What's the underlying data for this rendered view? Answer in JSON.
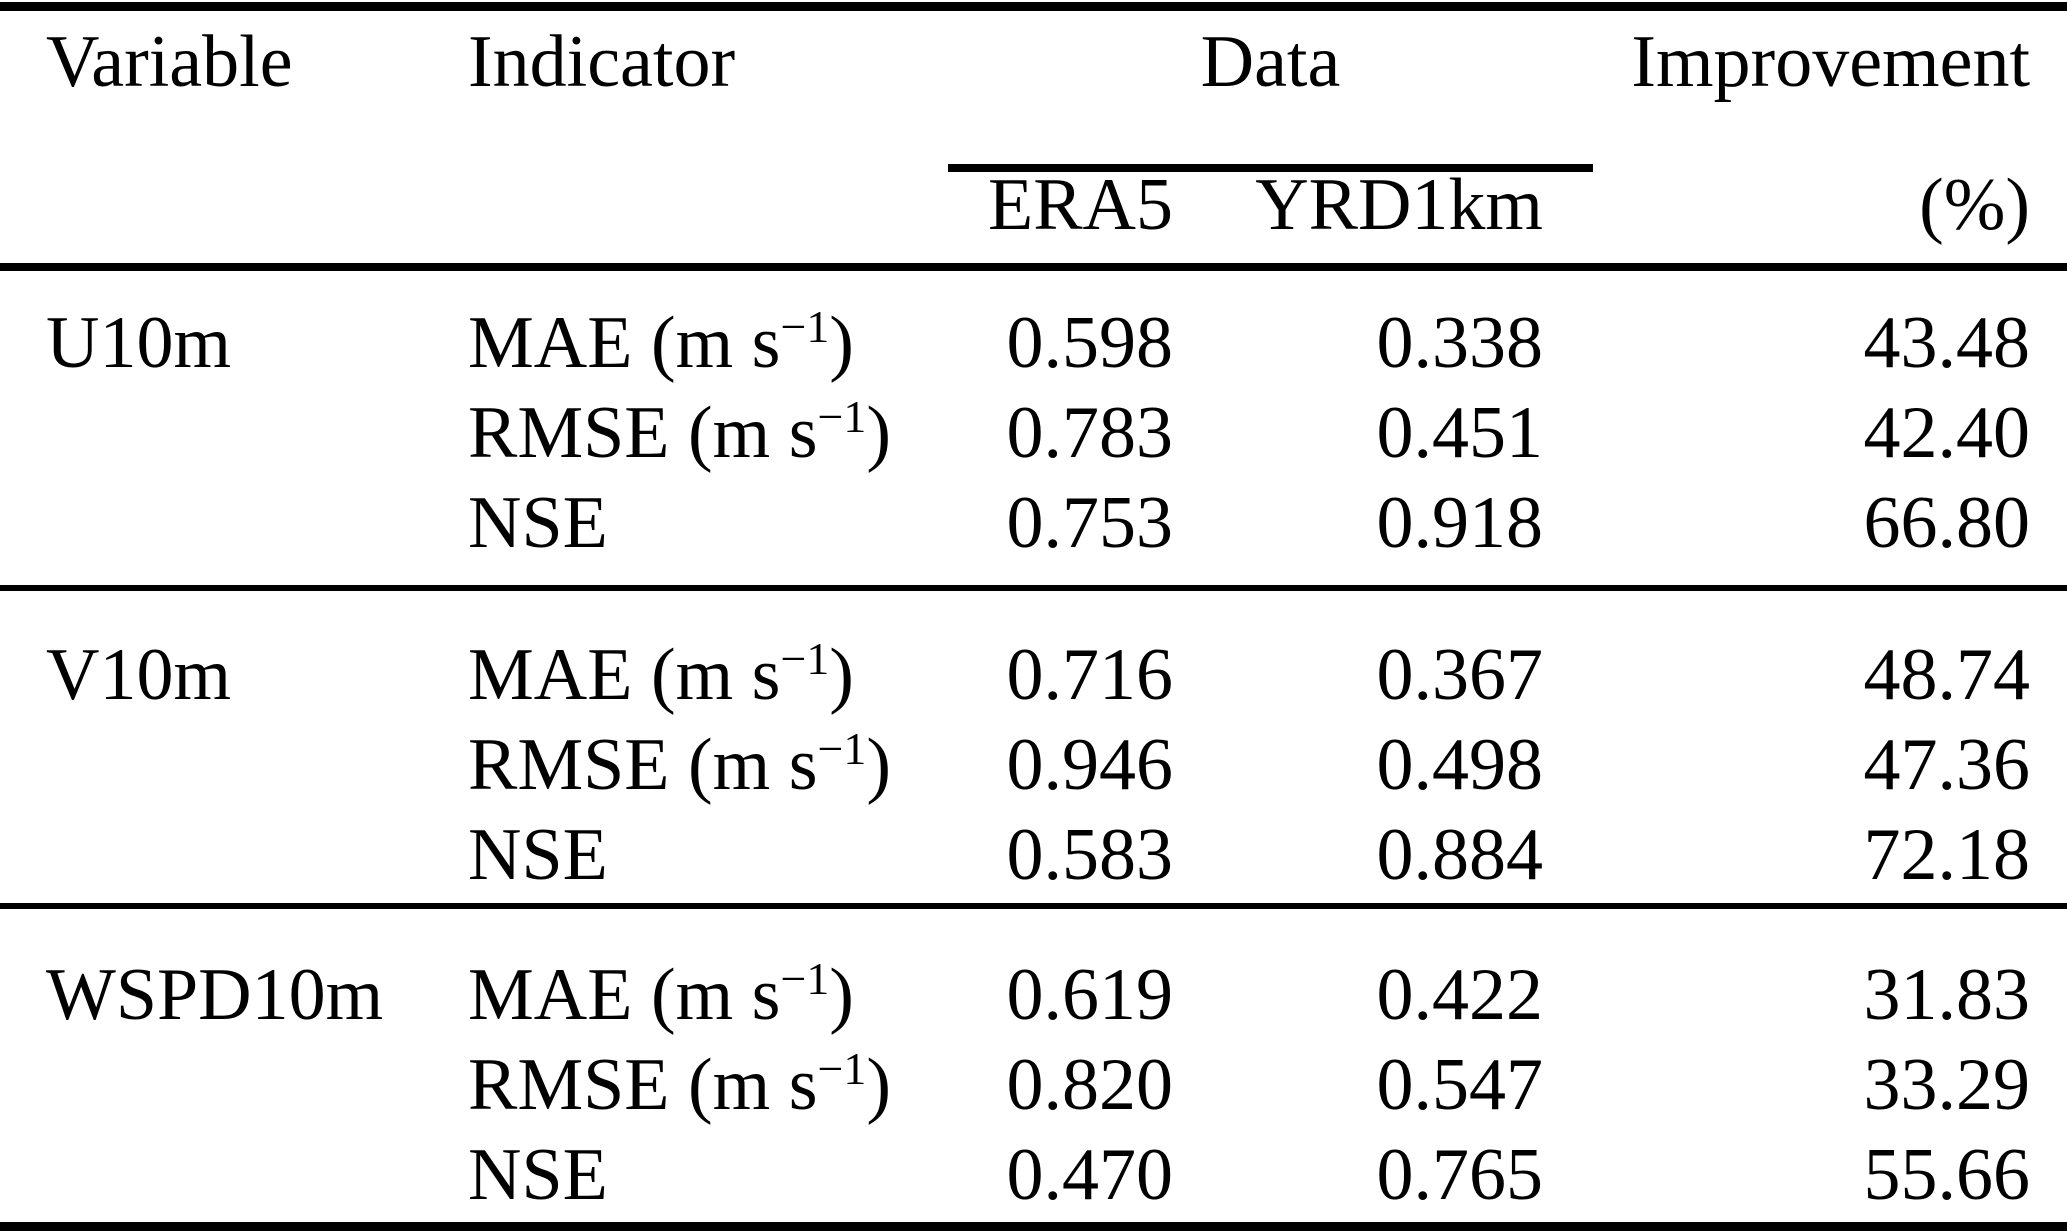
{
  "table": {
    "colors": {
      "text": "#000000",
      "background": "#ffffff",
      "rule": "#000000"
    },
    "header": {
      "variable": "Variable",
      "indicator": "Indicator",
      "data": "Data",
      "era5": "ERA5",
      "yrd1km": "YRD1km",
      "improvement": "Improvement",
      "improvement_unit": "(%)"
    },
    "groups": [
      {
        "variable": "U10m",
        "rows": [
          {
            "indicator": {
              "name": "MAE",
              "unit_open": " (m s",
              "unit_sup": "−1",
              "unit_close": ")"
            },
            "era5": "0.598",
            "yrd1km": "0.338",
            "improvement": "43.48"
          },
          {
            "indicator": {
              "name": "RMSE",
              "unit_open": " (m s",
              "unit_sup": "−1",
              "unit_close": ")"
            },
            "era5": "0.783",
            "yrd1km": "0.451",
            "improvement": "42.40"
          },
          {
            "indicator": {
              "name": "NSE",
              "unit_open": "",
              "unit_sup": "",
              "unit_close": ""
            },
            "era5": "0.753",
            "yrd1km": "0.918",
            "improvement": "66.80"
          }
        ]
      },
      {
        "variable": "V10m",
        "rows": [
          {
            "indicator": {
              "name": "MAE",
              "unit_open": " (m s",
              "unit_sup": "−1",
              "unit_close": ")"
            },
            "era5": "0.716",
            "yrd1km": "0.367",
            "improvement": "48.74"
          },
          {
            "indicator": {
              "name": "RMSE",
              "unit_open": " (m s",
              "unit_sup": "−1",
              "unit_close": ")"
            },
            "era5": "0.946",
            "yrd1km": "0.498",
            "improvement": "47.36"
          },
          {
            "indicator": {
              "name": "NSE",
              "unit_open": "",
              "unit_sup": "",
              "unit_close": ""
            },
            "era5": "0.583",
            "yrd1km": "0.884",
            "improvement": "72.18"
          }
        ]
      },
      {
        "variable": "WSPD10m",
        "rows": [
          {
            "indicator": {
              "name": "MAE",
              "unit_open": " (m s",
              "unit_sup": "−1",
              "unit_close": ")"
            },
            "era5": "0.619",
            "yrd1km": "0.422",
            "improvement": "31.83"
          },
          {
            "indicator": {
              "name": "RMSE",
              "unit_open": " (m s",
              "unit_sup": "−1",
              "unit_close": ")"
            },
            "era5": "0.820",
            "yrd1km": "0.547",
            "improvement": "33.29"
          },
          {
            "indicator": {
              "name": "NSE",
              "unit_open": "",
              "unit_sup": "",
              "unit_close": ""
            },
            "era5": "0.470",
            "yrd1km": "0.765",
            "improvement": "55.66"
          }
        ]
      }
    ]
  }
}
